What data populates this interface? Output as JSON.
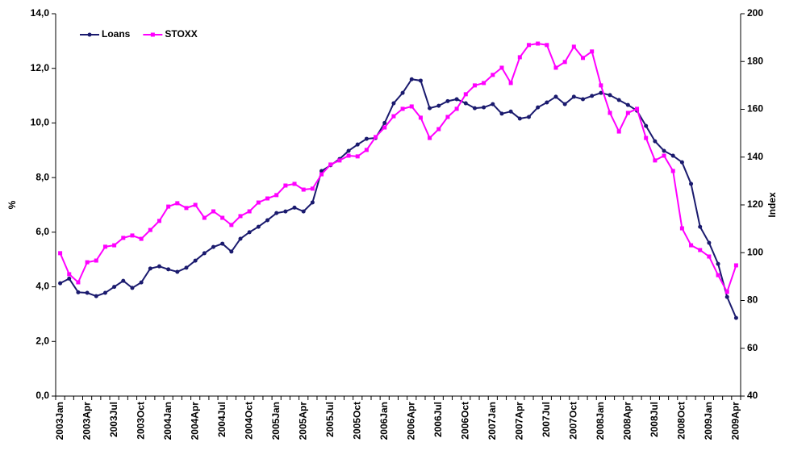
{
  "chart_data": {
    "type": "line",
    "y_label": "%",
    "y2_label": "Index",
    "categories": [
      "2003Jan",
      null,
      null,
      "2003Apr",
      null,
      null,
      "2003Jul",
      null,
      null,
      "2003Oct",
      null,
      null,
      "2004Jan",
      null,
      null,
      "2004Apr",
      null,
      null,
      "2004Jul",
      null,
      null,
      "2004Oct",
      null,
      null,
      "2005Jan",
      null,
      null,
      "2005Apr",
      null,
      null,
      "2005Jul",
      null,
      null,
      "2005Oct",
      null,
      null,
      "2006Jan",
      null,
      null,
      "2006Apr",
      null,
      null,
      "2006Jul",
      null,
      null,
      "2006Oct",
      null,
      null,
      "2007Jan",
      null,
      null,
      "2007Apr",
      null,
      null,
      "2007Jul",
      null,
      null,
      "2007Oct",
      null,
      null,
      "2008Jan",
      null,
      null,
      "2008Apr",
      null,
      null,
      "2008Jul",
      null,
      null,
      "2008Oct",
      null,
      null,
      "2009Jan",
      null,
      null,
      "2009Apr"
    ],
    "series": [
      {
        "name": "Loans",
        "color": "#1a1a6e",
        "marker": "circle",
        "axis": "y",
        "values": [
          4.13,
          4.3,
          3.8,
          3.78,
          3.66,
          3.78,
          4.0,
          4.22,
          3.96,
          4.16,
          4.67,
          4.75,
          4.64,
          4.55,
          4.7,
          4.96,
          5.23,
          5.46,
          5.58,
          5.29,
          5.76,
          6.0,
          6.2,
          6.44,
          6.7,
          6.76,
          6.9,
          6.76,
          7.09,
          8.24,
          8.45,
          8.68,
          8.98,
          9.21,
          9.42,
          9.45,
          10.0,
          10.72,
          11.1,
          11.6,
          11.55,
          10.54,
          10.63,
          10.8,
          10.87,
          10.72,
          10.54,
          10.57,
          10.69,
          10.34,
          10.42,
          10.16,
          10.22,
          10.57,
          10.75,
          10.96,
          10.69,
          10.96,
          10.87,
          10.99,
          11.1,
          11.02,
          10.84,
          10.66,
          10.45,
          9.89,
          9.33,
          8.98,
          8.8,
          8.56,
          7.77,
          6.2,
          5.61,
          4.84,
          3.63,
          2.86
        ]
      },
      {
        "name": "STOXX",
        "color": "#ff00ff",
        "marker": "square",
        "axis": "y2",
        "values": [
          99.8,
          91,
          87.6,
          96,
          96.7,
          102.5,
          103.1,
          106.2,
          107.2,
          105.8,
          109.5,
          113.3,
          119.3,
          120.7,
          118.7,
          120,
          114.6,
          117.3,
          114.6,
          111.6,
          115.3,
          117.3,
          121,
          122.7,
          124.1,
          128.1,
          128.8,
          126.4,
          126.8,
          132.8,
          136.9,
          138.6,
          140.6,
          140.3,
          143,
          148.4,
          152.4,
          157.1,
          160.2,
          161.2,
          156.5,
          148,
          151.7,
          156.8,
          160.2,
          166.3,
          170,
          171,
          174.4,
          177.4,
          171,
          181.8,
          186.9,
          187.5,
          186.9,
          177.4,
          179.8,
          186.2,
          181.5,
          184.2,
          170,
          158.5,
          150.7,
          158.5,
          160.2,
          148,
          138.6,
          140.6,
          134.2,
          110.2,
          103.1,
          101.1,
          98.4,
          90.6,
          83.6,
          94.7
        ]
      }
    ],
    "ylim": [
      0,
      14
    ],
    "yticks": [
      {
        "value": 0,
        "label": "0,0"
      },
      {
        "value": 2,
        "label": "2,0"
      },
      {
        "value": 4,
        "label": "4,0"
      },
      {
        "value": 6,
        "label": "6,0"
      },
      {
        "value": 8,
        "label": "8,0"
      },
      {
        "value": 10,
        "label": "10,0"
      },
      {
        "value": 12,
        "label": "12,0"
      },
      {
        "value": 14,
        "label": "14,0"
      }
    ],
    "y2lim": [
      40,
      200
    ],
    "y2ticks": [
      40,
      60,
      80,
      100,
      120,
      140,
      160,
      180,
      200
    ],
    "legend": "upper left",
    "grid": false
  }
}
